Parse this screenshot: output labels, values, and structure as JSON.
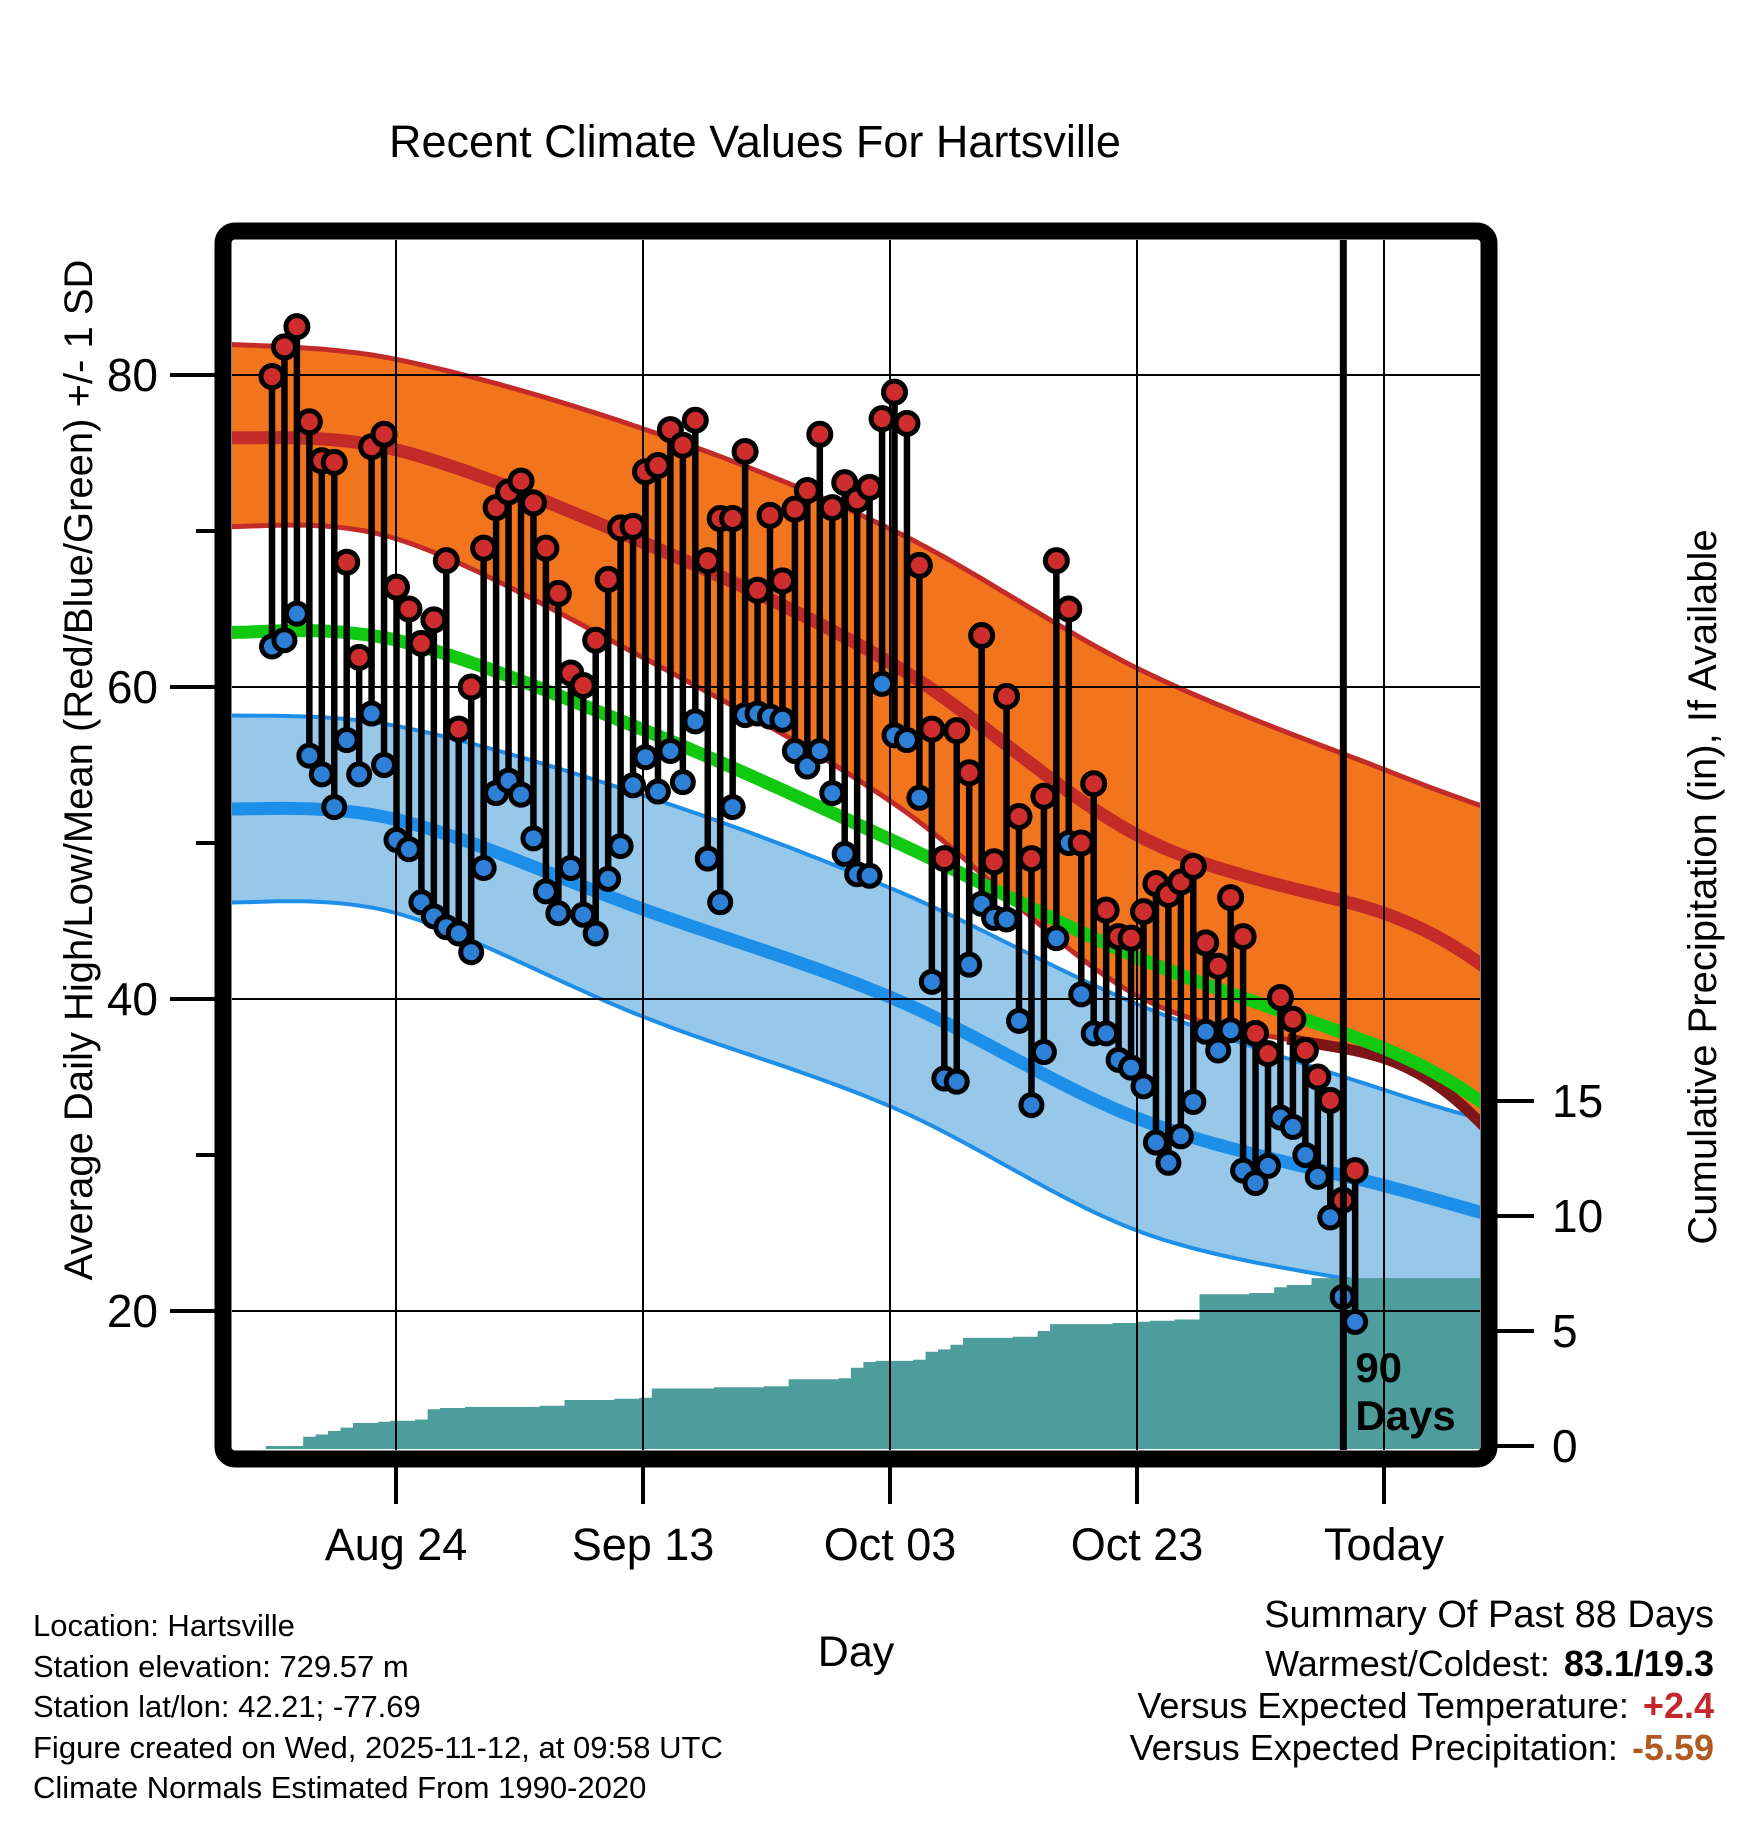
{
  "header": {
    "title": "Recent Climate Values For Hartsville"
  },
  "axes": {
    "left_label": "Average Daily High/Low/Mean (Red/Blue/Green) +/- 1 SD",
    "right_label": "Cumulative Precipitation (in), If Available",
    "x_label": "Day",
    "x_tick_labels": [
      "Aug 24",
      "Sep 13",
      "Oct 03",
      "Oct 23",
      "Today"
    ],
    "left_tick_values": [
      80,
      60,
      40,
      20
    ],
    "left_minor_tick_values": [
      70,
      50,
      30
    ],
    "right_tick_values": [
      15,
      10,
      5,
      0
    ]
  },
  "annotation_90days": {
    "line1": "90",
    "line2": "Days"
  },
  "footer": {
    "lines": [
      "Location: Hartsville",
      "Station elevation: 729.57 m",
      "Station lat/lon: 42.21; -77.69",
      "Figure created on Wed, 2025-11-12, at 09:58 UTC",
      "Climate Normals Estimated From 1990-2020"
    ]
  },
  "summary": {
    "title": "Summary Of Past 88 Days",
    "rows": [
      {
        "label": "Warmest/Coldest:",
        "value": "83.1/19.3",
        "color": "#000000"
      },
      {
        "label": "Versus Expected Temperature:",
        "value": "+2.4",
        "color": "#c3272b"
      },
      {
        "label": "Versus Expected Precipitation:",
        "value": "-5.59",
        "color": "#b05a21"
      }
    ]
  },
  "colors": {
    "high_band_fill": "#F2751E",
    "high_band_edge": "#C32B28",
    "high_mean_line": "#C32B28",
    "high_band_lower_dark": "#7E1518",
    "mean_line": "#12C912",
    "low_band_fill": "#97C7E9",
    "low_band_edge": "#1E8FE8",
    "low_mean_line": "#1E8FE8",
    "dot_high": "#CE2D2D",
    "dot_low": "#2E7FD6",
    "stem": "#000000",
    "precip_fill": "#4D9D9C",
    "grid": "#000000"
  },
  "chart_data": {
    "type": "line",
    "title": "Recent Climate Values For Hartsville",
    "subtitle": "Daily high/low stems with climate-normal bands and cumulative precipitation",
    "xlabel": "Day",
    "ylabel_left": "Average Daily High/Low/Mean (Red/Blue/Green) +/- 1 SD",
    "ylabel_right": "Cumulative Precipitation (in), If Available",
    "x_tick_labels": [
      "Aug 24",
      "Sep 13",
      "Oct 03",
      "Oct 23",
      "Today"
    ],
    "num_days": 88,
    "today_line_day": 88.3,
    "y_left_ticks": [
      80,
      60,
      40,
      20
    ],
    "y_left_range": [
      11,
      88.5
    ],
    "y_right_ticks": [
      15,
      10,
      5,
      0
    ],
    "y_right_range": [
      0,
      52.5
    ],
    "daily_high_f": [
      79.9,
      81.8,
      83.1,
      77.0,
      74.5,
      74.4,
      68.0,
      61.9,
      75.4,
      76.2,
      66.4,
      65.0,
      62.8,
      64.3,
      68.1,
      57.3,
      60.0,
      68.9,
      71.5,
      72.5,
      73.2,
      71.8,
      68.9,
      66.0,
      60.9,
      60.1,
      63.0,
      66.9,
      70.2,
      70.3,
      73.8,
      74.2,
      76.5,
      75.5,
      77.1,
      68.1,
      70.8,
      70.8,
      75.1,
      66.2,
      71.0,
      66.8,
      71.4,
      72.6,
      76.2,
      71.5,
      73.1,
      72.0,
      72.8,
      77.2,
      78.9,
      76.9,
      67.8,
      57.3,
      49.0,
      57.2,
      54.5,
      63.3,
      48.8,
      59.4,
      51.7,
      49.0,
      53.0,
      68.1,
      65.0,
      50.0,
      53.8,
      45.7,
      44.0,
      43.9,
      45.6,
      47.4,
      46.7,
      47.5,
      48.5,
      43.6,
      42.1,
      46.5,
      44.0,
      37.8,
      36.5,
      40.1,
      38.7,
      36.7,
      35.0,
      33.5,
      27.1,
      29.0
    ],
    "daily_low_f": [
      62.6,
      63.0,
      64.7,
      55.6,
      54.4,
      52.3,
      56.6,
      54.4,
      58.3,
      55.0,
      50.2,
      49.6,
      46.2,
      45.3,
      44.6,
      44.2,
      43.0,
      48.4,
      53.2,
      54.0,
      53.1,
      50.3,
      46.9,
      45.5,
      48.4,
      45.4,
      44.2,
      47.7,
      49.8,
      53.7,
      55.5,
      53.3,
      55.9,
      53.9,
      57.8,
      49.0,
      46.2,
      52.3,
      58.2,
      58.3,
      58.1,
      57.9,
      55.9,
      54.9,
      55.9,
      53.2,
      49.3,
      48.0,
      47.9,
      60.2,
      56.9,
      56.6,
      52.9,
      41.1,
      34.9,
      34.7,
      42.2,
      46.1,
      45.2,
      45.1,
      38.6,
      33.2,
      36.6,
      43.9,
      50.0,
      40.3,
      37.8,
      37.8,
      36.1,
      35.6,
      34.4,
      30.8,
      29.5,
      31.2,
      33.4,
      37.9,
      36.7,
      38.0,
      29.0,
      28.2,
      29.3,
      32.4,
      31.8,
      30.0,
      28.6,
      26.0,
      20.9,
      19.3
    ],
    "cumulative_precip_in": [
      0,
      0,
      0,
      0.4,
      0.5,
      0.65,
      0.8,
      1.0,
      1.0,
      1.05,
      1.1,
      1.1,
      1.15,
      1.6,
      1.65,
      1.65,
      1.7,
      1.7,
      1.7,
      1.7,
      1.7,
      1.7,
      1.75,
      1.75,
      2.0,
      2.0,
      2.0,
      2.0,
      2.05,
      2.05,
      2.1,
      2.5,
      2.5,
      2.5,
      2.5,
      2.5,
      2.55,
      2.55,
      2.55,
      2.55,
      2.6,
      2.6,
      2.9,
      2.9,
      2.9,
      2.9,
      2.95,
      3.4,
      3.65,
      3.7,
      3.7,
      3.7,
      3.75,
      4.1,
      4.2,
      4.4,
      4.7,
      4.7,
      4.7,
      4.7,
      4.75,
      4.75,
      5.0,
      5.3,
      5.3,
      5.3,
      5.3,
      5.3,
      5.35,
      5.35,
      5.4,
      5.45,
      5.45,
      5.5,
      5.5,
      6.6,
      6.6,
      6.6,
      6.6,
      6.65,
      6.65,
      6.9,
      7.0,
      7.0,
      7.3,
      7.3,
      7.3,
      7.3
    ],
    "normals": {
      "x_day": [
        -4.0,
        10.0,
        30.0,
        50.0,
        70.0,
        90.0,
        98.5
      ],
      "high_plus_1sd": [
        82.0,
        81.0,
        76.5,
        70.0,
        61.0,
        54.5,
        52.0
      ],
      "high_mean": [
        76.0,
        75.2,
        69.2,
        61.4,
        50.3,
        45.3,
        41.5
      ],
      "high_minus_1sd": [
        70.3,
        69.5,
        61.8,
        52.5,
        40.0,
        36.0,
        31.0
      ],
      "mean": [
        63.5,
        63.0,
        57.2,
        50.1,
        42.5,
        36.6,
        32.7
      ],
      "low_plus_1sd": [
        58.2,
        57.5,
        53.0,
        47.0,
        39.5,
        34.0,
        32.0
      ],
      "low_mean": [
        52.2,
        51.5,
        45.7,
        40.0,
        32.2,
        27.9,
        26.0
      ],
      "low_minus_1sd": [
        46.2,
        45.5,
        38.8,
        33.0,
        25.0,
        21.5,
        20.0
      ]
    },
    "summary_stats": {
      "period_days": 88,
      "warmest_f": 83.1,
      "coldest_f": 19.3,
      "vs_expected_temperature_f": 2.4,
      "vs_expected_precipitation_in": -5.59
    }
  }
}
